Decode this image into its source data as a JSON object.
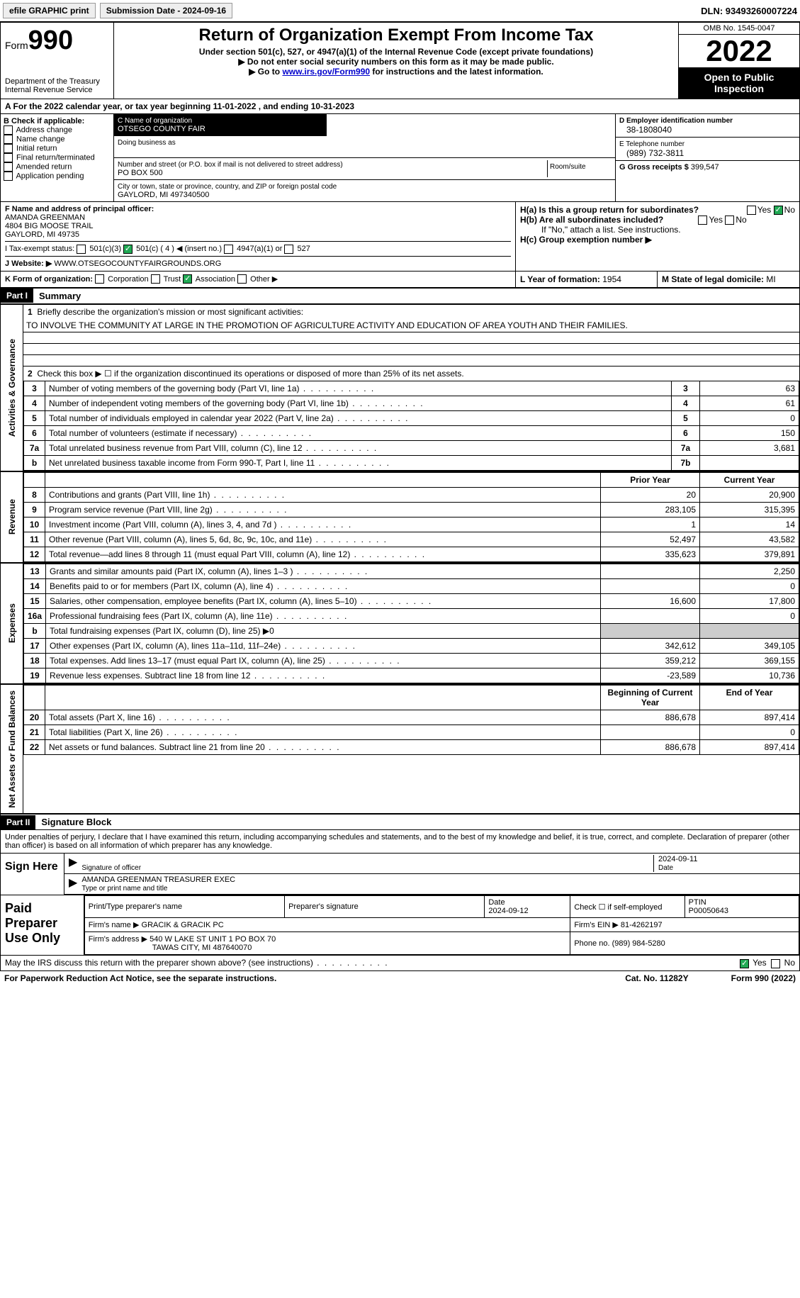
{
  "topbar": {
    "efile": "efile GRAPHIC print",
    "submission": "Submission Date - 2024-09-16",
    "dln": "DLN: 93493260007224"
  },
  "header": {
    "form_word": "Form",
    "form_num": "990",
    "dept": "Department of the Treasury\nInternal Revenue Service",
    "title": "Return of Organization Exempt From Income Tax",
    "sub1": "Under section 501(c), 527, or 4947(a)(1) of the Internal Revenue Code (except private foundations)",
    "sub2": "▶ Do not enter social security numbers on this form as it may be made public.",
    "sub3_pre": "▶ Go to ",
    "sub3_link": "www.irs.gov/Form990",
    "sub3_post": " for instructions and the latest information.",
    "omb": "OMB No. 1545-0047",
    "year": "2022",
    "inspect": "Open to Public Inspection"
  },
  "period": {
    "line": "A For the 2022 calendar year, or tax year beginning 11-01-2022    , and ending 10-31-2023"
  },
  "boxB": {
    "label": "B Check if applicable:",
    "opts": [
      "Address change",
      "Name change",
      "Initial return",
      "Final return/terminated",
      "Amended return",
      "Application pending"
    ]
  },
  "boxC": {
    "name_lbl": "C Name of organization",
    "name": "OTSEGO COUNTY FAIR",
    "dba_lbl": "Doing business as",
    "addr_lbl": "Number and street (or P.O. box if mail is not delivered to street address)",
    "room_lbl": "Room/suite",
    "addr": "PO BOX 500",
    "city_lbl": "City or town, state or province, country, and ZIP or foreign postal code",
    "city": "GAYLORD, MI  497340500"
  },
  "boxD": {
    "lbl": "D Employer identification number",
    "val": "38-1808040"
  },
  "boxE": {
    "lbl": "E Telephone number",
    "val": "(989) 732-3811"
  },
  "boxG": {
    "lbl": "G Gross receipts $ ",
    "val": "399,547"
  },
  "boxF": {
    "lbl": "F Name and address of principal officer:",
    "name": "AMANDA GREENMAN",
    "addr1": "4804 BIG MOOSE TRAIL",
    "addr2": "GAYLORD, MI  49735"
  },
  "boxH": {
    "a": "H(a)  Is this a group return for subordinates?",
    "b": "H(b)  Are all subordinates included?",
    "b_note": "If \"No,\" attach a list. See instructions.",
    "c": "H(c)  Group exemption number ▶",
    "yes": "Yes",
    "no": "No"
  },
  "boxI": {
    "lbl": "I    Tax-exempt status:",
    "o1": "501(c)(3)",
    "o2": "501(c) ( 4 ) ◀ (insert no.)",
    "o3": "4947(a)(1) or",
    "o4": "527"
  },
  "boxJ": {
    "lbl": "J    Website: ▶  ",
    "val": "WWW.OTSEGOCOUNTYFAIRGROUNDS.ORG"
  },
  "boxK": {
    "lbl": "K Form of organization:",
    "o1": "Corporation",
    "o2": "Trust",
    "o3": "Association",
    "o4": "Other ▶"
  },
  "boxL": {
    "lbl": "L Year of formation: ",
    "val": "1954"
  },
  "boxM": {
    "lbl": "M State of legal domicile: ",
    "val": "MI"
  },
  "part1": {
    "hdr": "Part I",
    "title": "Summary",
    "sec_ag": "Activities & Governance",
    "sec_rev": "Revenue",
    "sec_exp": "Expenses",
    "sec_net": "Net Assets or Fund Balances",
    "l1_lbl": "Briefly describe the organization's mission or most significant activities:",
    "l1_val": "TO INVOLVE THE COMMUNITY AT LARGE IN THE PROMOTION OF AGRICULTURE ACTIVITY AND EDUCATION OF AREA YOUTH AND THEIR FAMILIES.",
    "l2": "Check this box ▶ ☐ if the organization discontinued its operations or disposed of more than 25% of its net assets.",
    "rows_ag": [
      {
        "n": "3",
        "t": "Number of voting members of the governing body (Part VI, line 1a)",
        "b": "3",
        "v": "63"
      },
      {
        "n": "4",
        "t": "Number of independent voting members of the governing body (Part VI, line 1b)",
        "b": "4",
        "v": "61"
      },
      {
        "n": "5",
        "t": "Total number of individuals employed in calendar year 2022 (Part V, line 2a)",
        "b": "5",
        "v": "0"
      },
      {
        "n": "6",
        "t": "Total number of volunteers (estimate if necessary)",
        "b": "6",
        "v": "150"
      },
      {
        "n": "7a",
        "t": "Total unrelated business revenue from Part VIII, column (C), line 12",
        "b": "7a",
        "v": "3,681"
      },
      {
        "n": "b",
        "t": "Net unrelated business taxable income from Form 990-T, Part I, line 11",
        "b": "7b",
        "v": ""
      }
    ],
    "col_py": "Prior Year",
    "col_cy": "Current Year",
    "rows_rev": [
      {
        "n": "8",
        "t": "Contributions and grants (Part VIII, line 1h)",
        "py": "20",
        "cy": "20,900"
      },
      {
        "n": "9",
        "t": "Program service revenue (Part VIII, line 2g)",
        "py": "283,105",
        "cy": "315,395"
      },
      {
        "n": "10",
        "t": "Investment income (Part VIII, column (A), lines 3, 4, and 7d )",
        "py": "1",
        "cy": "14"
      },
      {
        "n": "11",
        "t": "Other revenue (Part VIII, column (A), lines 5, 6d, 8c, 9c, 10c, and 11e)",
        "py": "52,497",
        "cy": "43,582"
      },
      {
        "n": "12",
        "t": "Total revenue—add lines 8 through 11 (must equal Part VIII, column (A), line 12)",
        "py": "335,623",
        "cy": "379,891"
      }
    ],
    "rows_exp": [
      {
        "n": "13",
        "t": "Grants and similar amounts paid (Part IX, column (A), lines 1–3 )",
        "py": "",
        "cy": "2,250"
      },
      {
        "n": "14",
        "t": "Benefits paid to or for members (Part IX, column (A), line 4)",
        "py": "",
        "cy": "0"
      },
      {
        "n": "15",
        "t": "Salaries, other compensation, employee benefits (Part IX, column (A), lines 5–10)",
        "py": "16,600",
        "cy": "17,800"
      },
      {
        "n": "16a",
        "t": "Professional fundraising fees (Part IX, column (A), line 11e)",
        "py": "",
        "cy": "0"
      },
      {
        "n": "b",
        "t": "Total fundraising expenses (Part IX, column (D), line 25) ▶0",
        "shade": true
      },
      {
        "n": "17",
        "t": "Other expenses (Part IX, column (A), lines 11a–11d, 11f–24e)",
        "py": "342,612",
        "cy": "349,105"
      },
      {
        "n": "18",
        "t": "Total expenses. Add lines 13–17 (must equal Part IX, column (A), line 25)",
        "py": "359,212",
        "cy": "369,155"
      },
      {
        "n": "19",
        "t": "Revenue less expenses. Subtract line 18 from line 12",
        "py": "-23,589",
        "cy": "10,736"
      }
    ],
    "col_boy": "Beginning of Current Year",
    "col_eoy": "End of Year",
    "rows_net": [
      {
        "n": "20",
        "t": "Total assets (Part X, line 16)",
        "py": "886,678",
        "cy": "897,414"
      },
      {
        "n": "21",
        "t": "Total liabilities (Part X, line 26)",
        "py": "",
        "cy": "0"
      },
      {
        "n": "22",
        "t": "Net assets or fund balances. Subtract line 21 from line 20",
        "py": "886,678",
        "cy": "897,414"
      }
    ]
  },
  "part2": {
    "hdr": "Part II",
    "title": "Signature Block",
    "decl": "Under penalties of perjury, I declare that I have examined this return, including accompanying schedules and statements, and to the best of my knowledge and belief, it is true, correct, and complete. Declaration of preparer (other than officer) is based on all information of which preparer has any knowledge.",
    "sign_here": "Sign Here",
    "sig_officer": "Signature of officer",
    "sig_date": "2024-09-11",
    "date_lbl": "Date",
    "name_title": "AMANDA GREENMAN  TREASURER EXEC",
    "type_lbl": "Type or print name and title",
    "prep_hdr": "Paid Preparer Use Only",
    "p_name_lbl": "Print/Type preparer's name",
    "p_sig_lbl": "Preparer's signature",
    "p_date_lbl": "Date",
    "p_date": "2024-09-12",
    "p_self": "Check ☐ if self-employed",
    "ptin_lbl": "PTIN",
    "ptin": "P00050643",
    "firm_name_lbl": "Firm's name    ▶",
    "firm_name": "GRACIK & GRACIK PC",
    "firm_ein_lbl": "Firm's EIN ▶",
    "firm_ein": "81-4262197",
    "firm_addr_lbl": "Firm's address ▶",
    "firm_addr1": "540 W LAKE ST UNIT 1 PO BOX 70",
    "firm_addr2": "TAWAS CITY, MI  487640070",
    "phone_lbl": "Phone no.",
    "phone": "(989) 984-5280",
    "discuss": "May the IRS discuss this return with the preparer shown above? (see instructions)",
    "yes": "Yes",
    "no": "No"
  },
  "footer": {
    "pra": "For Paperwork Reduction Act Notice, see the separate instructions.",
    "cat": "Cat. No. 11282Y",
    "form": "Form 990 (2022)"
  }
}
